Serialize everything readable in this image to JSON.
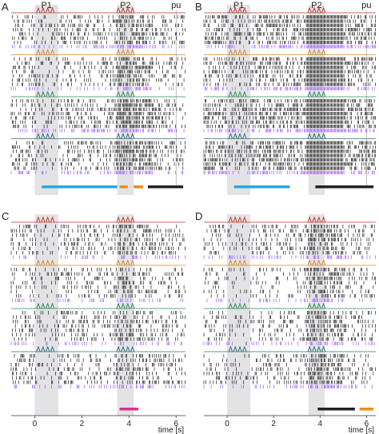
{
  "chart_data": {
    "type": "scatter",
    "description_kind": "spike raster plots, four panels",
    "xlabel": "time [s]",
    "xticks": [
      0,
      2,
      4,
      6
    ],
    "xlim": [
      -1.0,
      6.4
    ],
    "stimulus_labels": {
      "p1": "P1",
      "p2": "P2",
      "pu": "pu"
    },
    "stimulus_windows": {
      "p1": [
        0.0,
        1.0
      ],
      "p2": [
        3.5,
        4.2
      ]
    },
    "colors": {
      "spike": "#1a1a1a",
      "red": "#c0392b",
      "orange": "#d5892f",
      "green": "#2e8b57",
      "teal": "#2d6f7a",
      "purple": "#9b59ff",
      "cyan": "#29a8e0",
      "orange_bar": "#f08c1a",
      "black_bar": "#222222",
      "magenta_bar": "#d6338c",
      "shade": "#d9d9dd"
    },
    "stimulus_pulse_times": {
      "p1": [
        0.15,
        0.35,
        0.55,
        0.75
      ],
      "p2": [
        3.55,
        3.75,
        3.95,
        4.15
      ]
    },
    "panels": [
      {
        "letter": "A",
        "groups": [
          {
            "color": "red",
            "rows": 7,
            "pre_rate": 0.9,
            "post_rate": 1.6
          },
          {
            "color": "orange",
            "rows": 7,
            "pre_rate": 0.8,
            "post_rate": 1.8
          },
          {
            "color": "green",
            "rows": 7,
            "pre_rate": 1.0,
            "post_rate": 2.2
          },
          {
            "color": "teal",
            "rows": 7,
            "pre_rate": 0.9,
            "post_rate": 2.0
          }
        ],
        "bars": [
          {
            "color": "cyan",
            "start": 0.3,
            "end": 3.5
          },
          {
            "color": "orange_bar",
            "start": 3.6,
            "end": 3.95
          },
          {
            "color": "orange_bar",
            "start": 4.2,
            "end": 4.6
          },
          {
            "color": "black_bar",
            "start": 4.8,
            "end": 6.3
          }
        ]
      },
      {
        "letter": "B",
        "groups": [
          {
            "color": "red",
            "rows": 7,
            "pre_rate": 1.3,
            "post_rate": 3.0
          },
          {
            "color": "orange",
            "rows": 7,
            "pre_rate": 1.2,
            "post_rate": 2.8
          },
          {
            "color": "green",
            "rows": 7,
            "pre_rate": 1.5,
            "post_rate": 3.2
          },
          {
            "color": "teal",
            "rows": 7,
            "pre_rate": 1.6,
            "post_rate": 3.2
          }
        ],
        "bars": [
          {
            "color": "cyan",
            "start": 0.3,
            "end": 2.7
          },
          {
            "color": "black_bar",
            "start": 3.8,
            "end": 6.3
          }
        ]
      },
      {
        "letter": "C",
        "groups": [
          {
            "color": "red",
            "rows": 7,
            "pre_rate": 0.8,
            "post_rate": 1.1
          },
          {
            "color": "orange",
            "rows": 7,
            "pre_rate": 0.7,
            "post_rate": 1.0
          },
          {
            "color": "green",
            "rows": 7,
            "pre_rate": 0.8,
            "post_rate": 1.0
          },
          {
            "color": "teal",
            "rows": 7,
            "pre_rate": 0.8,
            "post_rate": 1.1
          }
        ],
        "bars": [
          {
            "color": "magenta_bar",
            "start": 3.6,
            "end": 4.4
          }
        ]
      },
      {
        "letter": "D",
        "groups": [
          {
            "color": "red",
            "rows": 7,
            "pre_rate": 0.7,
            "post_rate": 1.5
          },
          {
            "color": "orange",
            "rows": 7,
            "pre_rate": 0.6,
            "post_rate": 1.4
          },
          {
            "color": "green",
            "rows": 7,
            "pre_rate": 0.7,
            "post_rate": 1.5
          },
          {
            "color": "teal",
            "rows": 7,
            "pre_rate": 0.7,
            "post_rate": 1.6
          }
        ],
        "bars": [
          {
            "color": "black_bar",
            "start": 3.9,
            "end": 5.5
          },
          {
            "color": "orange_bar",
            "start": 5.7,
            "end": 6.3
          }
        ]
      }
    ]
  }
}
